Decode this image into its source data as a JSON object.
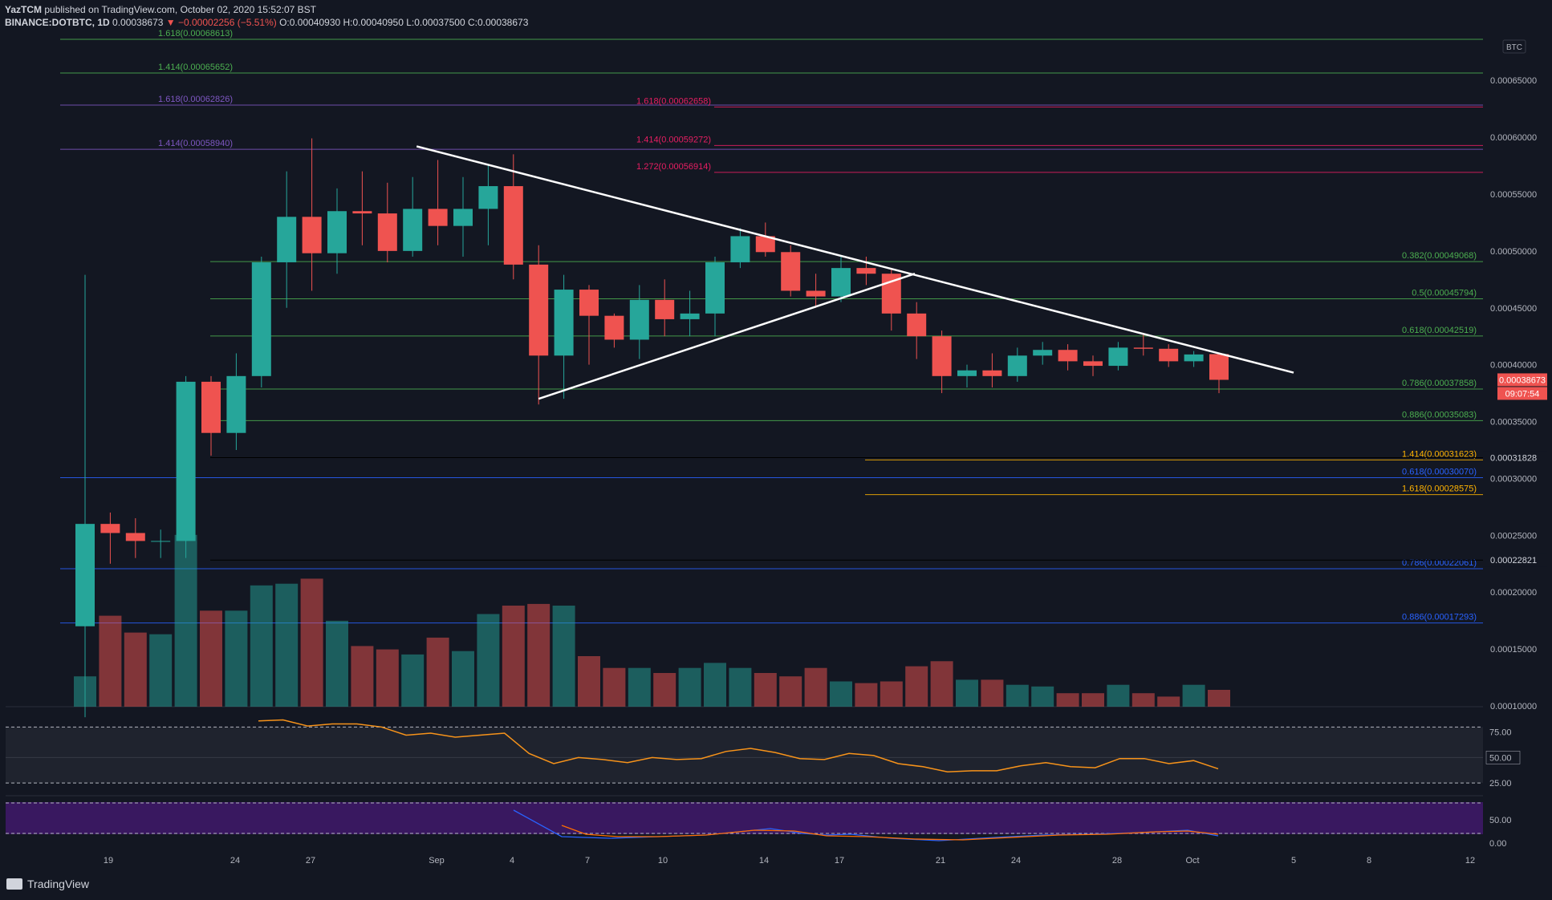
{
  "header": {
    "line1_author": "YazTCM",
    "line1_rest": " published on TradingView.com, October 02, 2020 15:52:07 BST",
    "symbol": "BINANCE:DOTBTC, 1D",
    "last": "0.00038673",
    "change": "▼ −0.00002256 (−5.51%)",
    "ohlc": "O:0.00040930 H:0.00040950 L:0.00037500 C:0.00038673"
  },
  "brand": "TradingView",
  "colors": {
    "bg": "#131722",
    "up": "#26a69a",
    "down": "#ef5350",
    "green_fib": "#4caf50",
    "pink_fib": "#e91e63",
    "purple_fib": "#7e57c2",
    "blue_fib": "#2962ff",
    "orange_fib": "#ffb300",
    "rsi": "#f7931a"
  },
  "chart_data": {
    "type": "candlestick",
    "currency": "BTC",
    "ylim": [
      0.0001,
      0.0006861
    ],
    "y_ticks": [
      "0.00065000",
      "0.00060000",
      "0.00055000",
      "0.00050000",
      "0.00045000",
      "0.00040000",
      "0.00035000",
      "0.00030000",
      "0.00025000",
      "0.00020000",
      "0.00015000",
      "0.00010000"
    ],
    "x_ticks": [
      "19",
      "24",
      "27",
      "Sep",
      "4",
      "7",
      "10",
      "14",
      "17",
      "21",
      "24",
      "28",
      "Oct",
      "5",
      "8",
      "12"
    ],
    "price_label": "0.00038673",
    "countdown": "09:07:54",
    "marker_labels": [
      "0.00031828",
      "0.00022821"
    ],
    "candles": [
      {
        "o": 0.00017,
        "h": 0.000479,
        "l": 9e-05,
        "c": 0.00026
      },
      {
        "o": 0.00026,
        "h": 0.00027,
        "l": 0.000225,
        "c": 0.000252
      },
      {
        "o": 0.000252,
        "h": 0.000265,
        "l": 0.00023,
        "c": 0.000245
      },
      {
        "o": 0.000245,
        "h": 0.000255,
        "l": 0.00023,
        "c": 0.000245
      },
      {
        "o": 0.000245,
        "h": 0.00039,
        "l": 0.00023,
        "c": 0.000385
      },
      {
        "o": 0.000385,
        "h": 0.00039,
        "l": 0.00032,
        "c": 0.00034
      },
      {
        "o": 0.00034,
        "h": 0.00041,
        "l": 0.000325,
        "c": 0.00039
      },
      {
        "o": 0.00039,
        "h": 0.000495,
        "l": 0.00038,
        "c": 0.00049
      },
      {
        "o": 0.00049,
        "h": 0.00057,
        "l": 0.00045,
        "c": 0.00053
      },
      {
        "o": 0.00053,
        "h": 0.000599,
        "l": 0.000465,
        "c": 0.000498
      },
      {
        "o": 0.000498,
        "h": 0.000555,
        "l": 0.00048,
        "c": 0.000535
      },
      {
        "o": 0.000535,
        "h": 0.00057,
        "l": 0.000505,
        "c": 0.000533
      },
      {
        "o": 0.000533,
        "h": 0.00056,
        "l": 0.00049,
        "c": 0.0005
      },
      {
        "o": 0.0005,
        "h": 0.000565,
        "l": 0.000495,
        "c": 0.000537
      },
      {
        "o": 0.000537,
        "h": 0.00058,
        "l": 0.000505,
        "c": 0.000522
      },
      {
        "o": 0.000522,
        "h": 0.000565,
        "l": 0.000495,
        "c": 0.000537
      },
      {
        "o": 0.000537,
        "h": 0.000575,
        "l": 0.000505,
        "c": 0.000557
      },
      {
        "o": 0.000557,
        "h": 0.000585,
        "l": 0.000475,
        "c": 0.000488
      },
      {
        "o": 0.000488,
        "h": 0.000505,
        "l": 0.000365,
        "c": 0.000408
      },
      {
        "o": 0.000408,
        "h": 0.000479,
        "l": 0.00037,
        "c": 0.000466
      },
      {
        "o": 0.000466,
        "h": 0.00047,
        "l": 0.0004,
        "c": 0.000443
      },
      {
        "o": 0.000443,
        "h": 0.000445,
        "l": 0.000415,
        "c": 0.000422
      },
      {
        "o": 0.000422,
        "h": 0.00047,
        "l": 0.000405,
        "c": 0.000457
      },
      {
        "o": 0.000457,
        "h": 0.000475,
        "l": 0.000425,
        "c": 0.00044
      },
      {
        "o": 0.00044,
        "h": 0.000465,
        "l": 0.000425,
        "c": 0.000445
      },
      {
        "o": 0.000445,
        "h": 0.000495,
        "l": 0.000425,
        "c": 0.00049
      },
      {
        "o": 0.00049,
        "h": 0.00052,
        "l": 0.000485,
        "c": 0.000513
      },
      {
        "o": 0.000513,
        "h": 0.000525,
        "l": 0.000495,
        "c": 0.000499
      },
      {
        "o": 0.000499,
        "h": 0.000505,
        "l": 0.00046,
        "c": 0.000465
      },
      {
        "o": 0.000465,
        "h": 0.00048,
        "l": 0.00045,
        "c": 0.00046
      },
      {
        "o": 0.00046,
        "h": 0.000495,
        "l": 0.000455,
        "c": 0.000485
      },
      {
        "o": 0.000485,
        "h": 0.000495,
        "l": 0.00047,
        "c": 0.00048
      },
      {
        "o": 0.00048,
        "h": 0.000485,
        "l": 0.00043,
        "c": 0.000445
      },
      {
        "o": 0.000445,
        "h": 0.000455,
        "l": 0.000405,
        "c": 0.000425
      },
      {
        "o": 0.000425,
        "h": 0.00043,
        "l": 0.000375,
        "c": 0.00039
      },
      {
        "o": 0.00039,
        "h": 0.0004,
        "l": 0.00038,
        "c": 0.000395
      },
      {
        "o": 0.000395,
        "h": 0.00041,
        "l": 0.00038,
        "c": 0.00039
      },
      {
        "o": 0.00039,
        "h": 0.000415,
        "l": 0.000385,
        "c": 0.000408
      },
      {
        "o": 0.000408,
        "h": 0.00042,
        "l": 0.0004,
        "c": 0.000413
      },
      {
        "o": 0.000413,
        "h": 0.000418,
        "l": 0.000395,
        "c": 0.000403
      },
      {
        "o": 0.000403,
        "h": 0.000408,
        "l": 0.00039,
        "c": 0.000399
      },
      {
        "o": 0.000399,
        "h": 0.00042,
        "l": 0.000395,
        "c": 0.000415
      },
      {
        "o": 0.000415,
        "h": 0.000428,
        "l": 0.000408,
        "c": 0.000414
      },
      {
        "o": 0.000414,
        "h": 0.000418,
        "l": 0.000398,
        "c": 0.000403
      },
      {
        "o": 0.000403,
        "h": 0.000412,
        "l": 0.000398,
        "c": 0.000409
      },
      {
        "o": 0.0004093,
        "h": 0.0004095,
        "l": 0.000375,
        "c": 0.0003867
      }
    ],
    "volume_relative": [
      0.18,
      0.54,
      0.44,
      0.43,
      1.02,
      0.57,
      0.57,
      0.72,
      0.73,
      0.76,
      0.51,
      0.36,
      0.34,
      0.31,
      0.41,
      0.33,
      0.55,
      0.6,
      0.61,
      0.6,
      0.3,
      0.23,
      0.23,
      0.2,
      0.23,
      0.26,
      0.23,
      0.2,
      0.18,
      0.23,
      0.15,
      0.14,
      0.15,
      0.24,
      0.27,
      0.16,
      0.16,
      0.13,
      0.12,
      0.08,
      0.08,
      0.13,
      0.08,
      0.06,
      0.13,
      0.1
    ],
    "fib_levels": [
      {
        "label": "1.618(0.00068613)",
        "value": 0.00068613,
        "color": "#4caf50",
        "start": "left"
      },
      {
        "label": "1.414(0.00065652)",
        "value": 0.00065652,
        "color": "#4caf50",
        "start": "left"
      },
      {
        "label": "1.618(0.00062826)",
        "value": 0.00062826,
        "color": "#7e57c2",
        "start": "left"
      },
      {
        "label": "1.414(0.00058940)",
        "value": 0.0005894,
        "color": "#7e57c2",
        "start": "left"
      },
      {
        "label": "1.618(0.00062658)",
        "value": 0.00062658,
        "color": "#e91e63",
        "start": "mid"
      },
      {
        "label": "1.414(0.00059272)",
        "value": 0.00059272,
        "color": "#e91e63",
        "start": "mid"
      },
      {
        "label": "1.272(0.00056914)",
        "value": 0.00056914,
        "color": "#e91e63",
        "start": "mid"
      },
      {
        "label": "0.382(0.00049068)",
        "value": 0.00049068,
        "color": "#4caf50",
        "start": "right"
      },
      {
        "label": "0.5(0.00045794)",
        "value": 0.00045794,
        "color": "#4caf50",
        "start": "right"
      },
      {
        "label": "0.618(0.00042519)",
        "value": 0.00042519,
        "color": "#4caf50",
        "start": "right"
      },
      {
        "label": "0.786(0.00037858)",
        "value": 0.00037858,
        "color": "#4caf50",
        "start": "right"
      },
      {
        "label": "0.886(0.00035083)",
        "value": 0.00035083,
        "color": "#4caf50",
        "start": "right"
      },
      {
        "label": "1.414(0.00031623)",
        "value": 0.00031623,
        "color": "#ffb300",
        "start": "late"
      },
      {
        "label": "0.618(0.00030070)",
        "value": 0.0003007,
        "color": "#2962ff",
        "start": "left"
      },
      {
        "label": "1.618(0.00028575)",
        "value": 0.00028575,
        "color": "#ffb300",
        "start": "late"
      },
      {
        "label": "0.786(0.00022061)",
        "value": 0.00022061,
        "color": "#2962ff",
        "start": "left"
      },
      {
        "label": "0.886(0.00017293)",
        "value": 0.00017293,
        "color": "#2962ff",
        "start": "left"
      }
    ],
    "rsi": {
      "ticks": [
        "75.00",
        "50.00",
        "25.00"
      ],
      "values": [
        86,
        87,
        81,
        83,
        83,
        80,
        72,
        74,
        70,
        72,
        74,
        54,
        44,
        50,
        48,
        45,
        50,
        48,
        49,
        56,
        59,
        55,
        49,
        48,
        54,
        52,
        44,
        41,
        36,
        37,
        37,
        42,
        45,
        41,
        40,
        49,
        49,
        44,
        47,
        39
      ]
    },
    "stoch": {
      "ticks": [
        "50.00",
        "0.00"
      ]
    }
  }
}
